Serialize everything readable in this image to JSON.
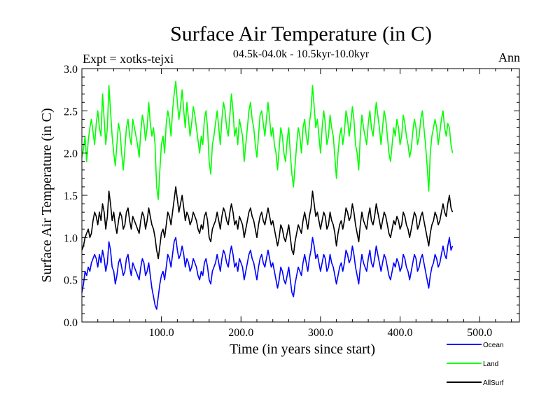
{
  "chart_data": {
    "type": "line",
    "title": "Surface Air Temperature (in C)",
    "subtitle": "04.5k-04.0k - 10.5kyr-10.0kyr",
    "experiment_label": "Expt = xotks-tejxi",
    "season_label": "Ann",
    "xlabel": "Time (in years since start)",
    "ylabel": "Surface Air Temperature (in C)",
    "xlim": [
      0,
      550
    ],
    "ylim": [
      0.0,
      3.0
    ],
    "x_ticks": [
      {
        "value": 100,
        "label": "100.0"
      },
      {
        "value": 200,
        "label": "200.0"
      },
      {
        "value": 300,
        "label": "300.0"
      },
      {
        "value": 400,
        "label": "400.0"
      },
      {
        "value": 500,
        "label": "500.0"
      }
    ],
    "y_ticks": [
      {
        "value": 0.0,
        "label": "0.0"
      },
      {
        "value": 0.5,
        "label": "0.5"
      },
      {
        "value": 1.0,
        "label": "1.0"
      },
      {
        "value": 1.5,
        "label": "1.5"
      },
      {
        "value": 2.0,
        "label": "2.0"
      },
      {
        "value": 2.5,
        "label": "2.5"
      },
      {
        "value": 3.0,
        "label": "3.0"
      }
    ],
    "x_step": 2,
    "series": [
      {
        "name": "Land",
        "color": "#00ff00",
        "values": [
          1.95,
          2.05,
          2.2,
          1.9,
          2.15,
          2.3,
          2.4,
          2.25,
          2.1,
          2.35,
          2.5,
          2.3,
          2.2,
          2.7,
          2.4,
          2.1,
          2.3,
          2.8,
          2.5,
          2.2,
          2.0,
          1.85,
          2.1,
          2.35,
          2.25,
          2.0,
          1.8,
          2.05,
          2.3,
          2.4,
          2.2,
          2.1,
          2.4,
          2.3,
          2.2,
          2.1,
          1.95,
          2.25,
          2.45,
          2.35,
          2.15,
          2.3,
          2.6,
          2.35,
          2.2,
          2.3,
          2.1,
          1.6,
          1.45,
          1.8,
          2.1,
          2.2,
          2.0,
          2.35,
          2.5,
          2.4,
          2.2,
          2.5,
          2.7,
          2.85,
          2.6,
          2.4,
          2.55,
          2.75,
          2.5,
          2.3,
          2.6,
          2.4,
          2.2,
          2.35,
          2.55,
          2.45,
          2.3,
          2.15,
          2.0,
          2.2,
          2.1,
          2.4,
          2.5,
          2.3,
          1.9,
          1.75,
          2.1,
          2.2,
          2.35,
          2.5,
          2.3,
          2.1,
          2.4,
          2.6,
          2.5,
          2.3,
          2.2,
          2.45,
          2.7,
          2.5,
          2.2,
          2.3,
          2.1,
          2.4,
          2.3,
          2.2,
          1.9,
          2.1,
          2.3,
          2.5,
          2.6,
          2.4,
          2.3,
          2.1,
          1.95,
          2.2,
          2.45,
          2.5,
          2.35,
          2.2,
          2.4,
          2.6,
          2.4,
          2.2,
          2.3,
          2.1,
          2.0,
          1.8,
          2.05,
          2.3,
          2.2,
          2.0,
          1.9,
          2.15,
          2.3,
          2.0,
          1.75,
          1.6,
          1.85,
          2.1,
          2.3,
          2.2,
          2.0,
          2.3,
          2.4,
          2.2,
          2.1,
          2.35,
          2.5,
          2.8,
          2.55,
          2.3,
          2.4,
          2.2,
          2.0,
          2.3,
          2.5,
          2.35,
          2.1,
          2.2,
          2.45,
          2.3,
          2.2,
          1.95,
          1.7,
          2.0,
          2.2,
          2.3,
          2.1,
          2.25,
          2.5,
          2.4,
          2.2,
          2.35,
          2.55,
          2.4,
          2.1,
          2.0,
          1.8,
          2.2,
          2.45,
          2.3,
          2.2,
          2.1,
          2.35,
          2.5,
          2.3,
          2.2,
          2.4,
          2.6,
          2.45,
          2.3,
          2.1,
          2.3,
          2.5,
          2.4,
          2.2,
          2.0,
          1.9,
          2.1,
          2.3,
          2.2,
          2.4,
          2.3,
          2.1,
          2.2,
          2.45,
          2.35,
          2.2,
          2.1,
          1.95,
          2.05,
          2.25,
          2.4,
          2.3,
          2.1,
          2.2,
          2.4,
          2.5,
          2.3,
          2.1,
          1.85,
          1.55,
          2.0,
          2.2,
          2.3,
          2.4,
          2.3,
          2.1,
          2.25,
          2.4,
          2.5,
          2.3,
          2.2,
          2.35,
          2.3,
          2.1,
          2.0
        ]
      },
      {
        "name": "AllSurf",
        "color": "#000000",
        "values": [
          0.85,
          0.9,
          1.0,
          1.05,
          1.1,
          1.0,
          1.05,
          1.2,
          1.3,
          1.25,
          1.15,
          1.3,
          1.2,
          1.4,
          1.3,
          1.1,
          1.25,
          1.55,
          1.4,
          1.2,
          1.3,
          1.15,
          1.05,
          1.2,
          1.3,
          1.25,
          1.1,
          1.15,
          1.3,
          1.35,
          1.2,
          1.1,
          1.25,
          1.2,
          1.15,
          1.1,
          1.05,
          1.2,
          1.3,
          1.25,
          1.1,
          1.2,
          1.35,
          1.25,
          1.15,
          1.1,
          1.0,
          0.85,
          0.75,
          0.9,
          1.05,
          1.1,
          1.0,
          1.15,
          1.3,
          1.25,
          1.15,
          1.3,
          1.45,
          1.6,
          1.45,
          1.3,
          1.4,
          1.5,
          1.35,
          1.2,
          1.3,
          1.25,
          1.15,
          1.2,
          1.3,
          1.25,
          1.2,
          1.1,
          1.05,
          1.15,
          1.1,
          1.25,
          1.3,
          1.2,
          1.0,
          0.95,
          1.1,
          1.15,
          1.2,
          1.3,
          1.2,
          1.1,
          1.25,
          1.35,
          1.3,
          1.2,
          1.15,
          1.3,
          1.4,
          1.3,
          1.15,
          1.2,
          1.1,
          1.25,
          1.2,
          1.15,
          1.0,
          1.1,
          1.2,
          1.3,
          1.35,
          1.25,
          1.2,
          1.1,
          1.0,
          1.15,
          1.25,
          1.3,
          1.2,
          1.15,
          1.25,
          1.35,
          1.25,
          1.15,
          1.2,
          1.1,
          1.0,
          0.9,
          1.0,
          1.15,
          1.1,
          1.0,
          0.95,
          1.05,
          1.15,
          1.0,
          0.85,
          0.8,
          0.95,
          1.05,
          1.15,
          1.1,
          1.05,
          1.2,
          1.3,
          1.2,
          1.1,
          1.25,
          1.35,
          1.55,
          1.4,
          1.25,
          1.3,
          1.2,
          1.1,
          1.2,
          1.3,
          1.25,
          1.1,
          1.15,
          1.3,
          1.2,
          1.15,
          1.05,
          0.9,
          1.05,
          1.15,
          1.2,
          1.1,
          1.2,
          1.35,
          1.3,
          1.2,
          1.25,
          1.4,
          1.3,
          1.15,
          1.05,
          0.95,
          1.15,
          1.3,
          1.2,
          1.15,
          1.1,
          1.25,
          1.35,
          1.2,
          1.15,
          1.25,
          1.4,
          1.3,
          1.2,
          1.1,
          1.2,
          1.3,
          1.25,
          1.15,
          1.05,
          1.0,
          1.1,
          1.2,
          1.15,
          1.25,
          1.2,
          1.1,
          1.15,
          1.3,
          1.25,
          1.15,
          1.1,
          1.0,
          1.1,
          1.2,
          1.3,
          1.25,
          1.1,
          1.15,
          1.25,
          1.3,
          1.2,
          1.1,
          1.0,
          0.9,
          1.05,
          1.15,
          1.2,
          1.3,
          1.25,
          1.15,
          1.2,
          1.3,
          1.4,
          1.3,
          1.25,
          1.4,
          1.5,
          1.35,
          1.3
        ]
      },
      {
        "name": "Ocean",
        "color": "#0000ff",
        "values": [
          0.35,
          0.45,
          0.6,
          0.55,
          0.65,
          0.6,
          0.7,
          0.75,
          0.8,
          0.75,
          0.65,
          0.8,
          0.7,
          0.85,
          0.75,
          0.6,
          0.7,
          0.95,
          0.85,
          0.65,
          0.6,
          0.45,
          0.55,
          0.7,
          0.75,
          0.65,
          0.55,
          0.6,
          0.75,
          0.8,
          0.65,
          0.55,
          0.7,
          0.65,
          0.6,
          0.55,
          0.5,
          0.65,
          0.75,
          0.7,
          0.55,
          0.6,
          0.7,
          0.55,
          0.4,
          0.3,
          0.2,
          0.15,
          0.3,
          0.45,
          0.55,
          0.6,
          0.5,
          0.65,
          0.8,
          0.75,
          0.65,
          0.8,
          0.95,
          1.0,
          0.85,
          0.75,
          0.8,
          0.9,
          0.8,
          0.65,
          0.75,
          0.7,
          0.6,
          0.65,
          0.75,
          0.7,
          0.65,
          0.55,
          0.5,
          0.6,
          0.55,
          0.7,
          0.75,
          0.65,
          0.5,
          0.45,
          0.6,
          0.65,
          0.7,
          0.8,
          0.7,
          0.6,
          0.75,
          0.85,
          0.8,
          0.7,
          0.65,
          0.8,
          0.9,
          0.8,
          0.65,
          0.7,
          0.6,
          0.75,
          0.7,
          0.65,
          0.5,
          0.6,
          0.7,
          0.8,
          0.85,
          0.75,
          0.7,
          0.6,
          0.5,
          0.65,
          0.75,
          0.8,
          0.7,
          0.65,
          0.75,
          0.85,
          0.75,
          0.65,
          0.7,
          0.6,
          0.5,
          0.4,
          0.5,
          0.65,
          0.6,
          0.5,
          0.45,
          0.55,
          0.65,
          0.5,
          0.35,
          0.3,
          0.45,
          0.55,
          0.65,
          0.6,
          0.55,
          0.7,
          0.8,
          0.7,
          0.6,
          0.75,
          0.85,
          1.0,
          0.9,
          0.75,
          0.8,
          0.7,
          0.6,
          0.7,
          0.8,
          0.75,
          0.6,
          0.65,
          0.8,
          0.7,
          0.65,
          0.55,
          0.45,
          0.55,
          0.65,
          0.7,
          0.6,
          0.7,
          0.85,
          0.8,
          0.7,
          0.75,
          0.9,
          0.8,
          0.65,
          0.55,
          0.45,
          0.65,
          0.8,
          0.7,
          0.65,
          0.6,
          0.75,
          0.85,
          0.7,
          0.65,
          0.75,
          0.9,
          0.8,
          0.7,
          0.6,
          0.7,
          0.8,
          0.75,
          0.65,
          0.55,
          0.5,
          0.6,
          0.7,
          0.65,
          0.75,
          0.7,
          0.6,
          0.65,
          0.8,
          0.75,
          0.65,
          0.6,
          0.5,
          0.6,
          0.7,
          0.8,
          0.75,
          0.6,
          0.65,
          0.75,
          0.8,
          0.7,
          0.6,
          0.5,
          0.4,
          0.55,
          0.65,
          0.7,
          0.8,
          0.75,
          0.65,
          0.7,
          0.8,
          0.9,
          0.8,
          0.75,
          0.9,
          1.0,
          0.85,
          0.9
        ]
      }
    ],
    "legend": {
      "placement": "bottom-right",
      "entries": [
        {
          "name": "Ocean",
          "color": "#0000ff"
        },
        {
          "name": "Land",
          "color": "#00ff00"
        },
        {
          "name": "AllSurf",
          "color": "#000000"
        }
      ]
    }
  }
}
